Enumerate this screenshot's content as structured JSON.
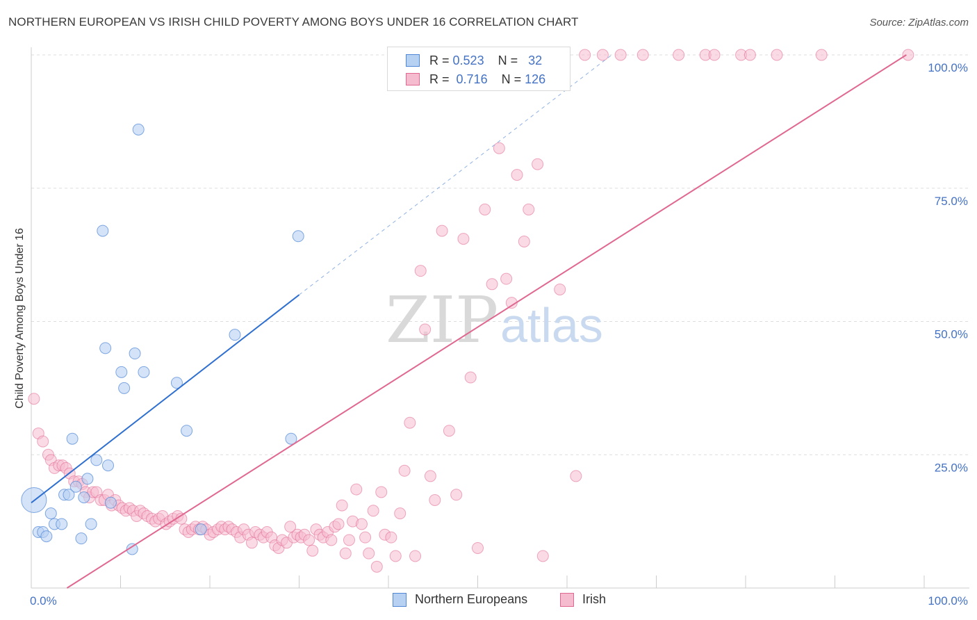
{
  "title": "NORTHERN EUROPEAN VS IRISH CHILD POVERTY AMONG BOYS UNDER 16 CORRELATION CHART",
  "source": "Source: ZipAtlas.com",
  "watermark": {
    "zip": "ZIP",
    "atlas": "atlas"
  },
  "colors": {
    "blue": "#4f86d6",
    "blue_fill": "#b7d1f2",
    "pink": "#e06890",
    "pink_fill": "#f5bcd0",
    "tick_blue": "#4472c4",
    "grid": "#dddddd"
  },
  "legend_top": {
    "rows": [
      {
        "r_label": "R =",
        "r_value": "0.523",
        "n_label": "N =",
        "n_value": "32"
      },
      {
        "r_label": "R =",
        "r_value": "0.716",
        "n_label": "N =",
        "n_value": "126"
      }
    ]
  },
  "legend_bottom": [
    "Northern Europeans",
    "Irish"
  ],
  "chart_data": {
    "type": "scatter",
    "title": "NORTHERN EUROPEAN VS IRISH CHILD POVERTY AMONG BOYS UNDER 16 CORRELATION CHART",
    "xlabel": "",
    "ylabel": "Child Poverty Among Boys Under 16",
    "xlim": [
      0,
      100
    ],
    "ylim": [
      0,
      100
    ],
    "x_tick_labels": [
      "0.0%",
      "100.0%"
    ],
    "y_tick_labels": [
      "25.0%",
      "50.0%",
      "75.0%",
      "100.0%"
    ],
    "y_tick_values": [
      25,
      50,
      75,
      100
    ],
    "grid": true,
    "legend_position": "bottom",
    "series": [
      {
        "name": "Northern Europeans",
        "R": 0.523,
        "N": 32,
        "trend": {
          "x": [
            0,
            30
          ],
          "y": [
            16,
            55
          ]
        },
        "trend_extension": {
          "x": [
            30,
            65
          ],
          "y": [
            55,
            100
          ]
        },
        "points": [
          [
            0.3,
            16.5
          ],
          [
            0.8,
            10.5
          ],
          [
            1.3,
            10.5
          ],
          [
            1.7,
            9.7
          ],
          [
            2.2,
            14
          ],
          [
            2.6,
            12
          ],
          [
            3.4,
            12
          ],
          [
            3.7,
            17.5
          ],
          [
            4.2,
            17.5
          ],
          [
            4.6,
            28
          ],
          [
            5.0,
            19
          ],
          [
            5.6,
            9.3
          ],
          [
            5.9,
            17
          ],
          [
            6.3,
            20.5
          ],
          [
            6.7,
            12
          ],
          [
            7.3,
            24
          ],
          [
            8.0,
            67
          ],
          [
            8.3,
            45
          ],
          [
            8.6,
            23
          ],
          [
            8.9,
            16
          ],
          [
            10.1,
            40.5
          ],
          [
            10.4,
            37.5
          ],
          [
            11.3,
            7.3
          ],
          [
            11.6,
            44
          ],
          [
            12.0,
            86
          ],
          [
            12.6,
            40.5
          ],
          [
            16.3,
            38.5
          ],
          [
            17.4,
            29.5
          ],
          [
            19.0,
            11
          ],
          [
            22.8,
            47.5
          ],
          [
            29.1,
            28
          ],
          [
            29.9,
            66
          ]
        ]
      },
      {
        "name": "Irish",
        "R": 0.716,
        "N": 126,
        "trend": {
          "x": [
            4,
            98
          ],
          "y": [
            0,
            100
          ]
        },
        "points": [
          [
            0.3,
            35.5
          ],
          [
            0.8,
            29
          ],
          [
            1.3,
            27.5
          ],
          [
            1.9,
            25
          ],
          [
            2.2,
            24
          ],
          [
            2.6,
            22.5
          ],
          [
            3.1,
            23
          ],
          [
            3.5,
            23
          ],
          [
            3.9,
            22.5
          ],
          [
            4.3,
            21.5
          ],
          [
            4.8,
            20
          ],
          [
            5.3,
            20
          ],
          [
            5.7,
            19.5
          ],
          [
            6.1,
            18
          ],
          [
            6.5,
            17
          ],
          [
            6.9,
            18
          ],
          [
            7.3,
            18
          ],
          [
            7.8,
            16.5
          ],
          [
            8.2,
            16.5
          ],
          [
            8.6,
            17.5
          ],
          [
            9.0,
            15.5
          ],
          [
            9.4,
            16.5
          ],
          [
            9.8,
            15.5
          ],
          [
            10.2,
            15
          ],
          [
            10.6,
            14.5
          ],
          [
            11.0,
            15
          ],
          [
            11.4,
            14.5
          ],
          [
            11.8,
            13.5
          ],
          [
            12.2,
            14.5
          ],
          [
            12.6,
            14
          ],
          [
            13.0,
            13.5
          ],
          [
            13.5,
            13
          ],
          [
            13.9,
            12.5
          ],
          [
            14.3,
            13
          ],
          [
            14.7,
            13.5
          ],
          [
            15.1,
            12
          ],
          [
            15.5,
            12.5
          ],
          [
            15.9,
            13
          ],
          [
            16.4,
            13.5
          ],
          [
            16.8,
            13
          ],
          [
            17.2,
            11
          ],
          [
            17.6,
            10.5
          ],
          [
            18.0,
            11
          ],
          [
            18.4,
            11.5
          ],
          [
            18.8,
            11
          ],
          [
            19.2,
            11.5
          ],
          [
            19.6,
            11
          ],
          [
            20.0,
            10
          ],
          [
            20.4,
            10.5
          ],
          [
            20.9,
            11
          ],
          [
            21.3,
            11.5
          ],
          [
            21.7,
            11
          ],
          [
            22.1,
            11.5
          ],
          [
            22.5,
            11
          ],
          [
            23.0,
            10.5
          ],
          [
            23.4,
            9.5
          ],
          [
            23.8,
            11
          ],
          [
            24.3,
            10
          ],
          [
            24.7,
            8.5
          ],
          [
            25.1,
            10.5
          ],
          [
            25.6,
            10
          ],
          [
            26.0,
            9.5
          ],
          [
            26.4,
            10.5
          ],
          [
            26.9,
            9.5
          ],
          [
            27.3,
            8
          ],
          [
            27.7,
            7.5
          ],
          [
            28.1,
            9
          ],
          [
            28.6,
            8.5
          ],
          [
            29.0,
            11.5
          ],
          [
            29.4,
            9.5
          ],
          [
            29.8,
            10
          ],
          [
            30.2,
            9.5
          ],
          [
            30.6,
            10
          ],
          [
            31.1,
            9
          ],
          [
            31.5,
            7
          ],
          [
            31.9,
            11
          ],
          [
            32.3,
            10
          ],
          [
            32.7,
            9.5
          ],
          [
            33.2,
            10.5
          ],
          [
            33.6,
            9
          ],
          [
            34.0,
            11.5
          ],
          [
            34.4,
            12
          ],
          [
            34.8,
            15.5
          ],
          [
            35.2,
            6.5
          ],
          [
            35.6,
            9
          ],
          [
            36.0,
            12.5
          ],
          [
            36.4,
            18.5
          ],
          [
            37.0,
            12
          ],
          [
            37.4,
            9.5
          ],
          [
            37.8,
            6.5
          ],
          [
            38.3,
            14.5
          ],
          [
            38.7,
            4
          ],
          [
            39.2,
            18
          ],
          [
            39.6,
            10
          ],
          [
            40.3,
            9.5
          ],
          [
            40.8,
            6
          ],
          [
            41.3,
            14
          ],
          [
            41.8,
            22
          ],
          [
            42.4,
            31
          ],
          [
            43.0,
            6
          ],
          [
            43.6,
            59.5
          ],
          [
            44.1,
            48.5
          ],
          [
            44.7,
            21
          ],
          [
            45.2,
            16.5
          ],
          [
            46.0,
            67
          ],
          [
            46.8,
            29.5
          ],
          [
            47.6,
            17.5
          ],
          [
            48.4,
            65.5
          ],
          [
            49.2,
            39.5
          ],
          [
            50.0,
            7.5
          ],
          [
            50.8,
            71
          ],
          [
            51.6,
            57
          ],
          [
            52.4,
            82.5
          ],
          [
            53.2,
            58
          ],
          [
            53.8,
            53.5
          ],
          [
            54.4,
            77.5
          ],
          [
            55.2,
            65
          ],
          [
            55.7,
            71
          ],
          [
            56.7,
            79.5
          ],
          [
            57.3,
            6
          ],
          [
            59.2,
            56
          ],
          [
            61.0,
            21
          ],
          [
            62.0,
            100
          ],
          [
            64.0,
            100
          ],
          [
            66.0,
            100
          ],
          [
            68.5,
            100
          ],
          [
            72.5,
            100
          ],
          [
            75.5,
            100
          ],
          [
            76.5,
            100
          ],
          [
            79.5,
            100
          ],
          [
            80.5,
            100
          ],
          [
            83.5,
            100
          ],
          [
            88.5,
            100
          ],
          [
            98.2,
            100
          ]
        ]
      }
    ]
  }
}
